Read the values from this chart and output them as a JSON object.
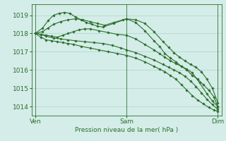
{
  "title": "Pression niveau de la mer( hPa )",
  "bg_color": "#d4ede8",
  "grid_color": "#aad4cc",
  "line_color": "#2d6e2d",
  "yticks": [
    1014,
    1015,
    1016,
    1017,
    1018,
    1019
  ],
  "ylim": [
    1013.5,
    1019.6
  ],
  "xtick_labels": [
    "Ven",
    "Sam",
    "Dim"
  ],
  "xtick_positions": [
    0,
    0.5,
    1.0
  ],
  "xlim": [
    -0.02,
    1.02
  ],
  "series": [
    {
      "x": [
        0.0,
        0.04,
        0.07,
        0.1,
        0.13,
        0.16,
        0.19,
        0.22,
        0.25,
        0.28,
        0.31,
        0.34,
        0.37,
        0.43,
        0.5,
        0.55,
        0.6,
        0.65,
        0.68,
        0.71,
        0.74,
        0.77,
        0.8,
        0.83,
        0.86,
        0.89,
        0.92,
        0.95,
        0.98,
        1.0
      ],
      "y": [
        1018.0,
        1018.3,
        1018.7,
        1019.0,
        1019.1,
        1019.15,
        1019.1,
        1018.9,
        1018.75,
        1018.6,
        1018.5,
        1018.4,
        1018.35,
        1018.55,
        1018.8,
        1018.6,
        1018.15,
        1017.6,
        1017.3,
        1016.9,
        1016.65,
        1016.45,
        1016.2,
        1016.0,
        1015.7,
        1015.5,
        1015.2,
        1014.9,
        1014.5,
        1013.95
      ]
    },
    {
      "x": [
        0.0,
        0.04,
        0.07,
        0.1,
        0.14,
        0.18,
        0.22,
        0.26,
        0.3,
        0.34,
        0.38,
        0.43,
        0.48,
        0.5,
        0.55,
        0.6,
        0.65,
        0.7,
        0.73,
        0.76,
        0.79,
        0.82,
        0.85,
        0.88,
        0.91,
        0.94,
        0.97,
        1.0
      ],
      "y": [
        1018.0,
        1018.1,
        1018.3,
        1018.5,
        1018.65,
        1018.75,
        1018.8,
        1018.75,
        1018.65,
        1018.55,
        1018.45,
        1018.6,
        1018.75,
        1018.8,
        1018.75,
        1018.55,
        1018.1,
        1017.55,
        1017.25,
        1016.95,
        1016.7,
        1016.5,
        1016.3,
        1016.15,
        1015.9,
        1015.5,
        1015.0,
        1014.2
      ]
    },
    {
      "x": [
        0.0,
        0.03,
        0.06,
        0.09,
        0.12,
        0.15,
        0.18,
        0.21,
        0.24,
        0.27,
        0.3,
        0.35,
        0.4,
        0.45,
        0.5,
        0.55,
        0.6,
        0.65,
        0.68,
        0.71,
        0.74,
        0.77,
        0.8,
        0.83,
        0.86,
        0.9,
        0.94,
        0.97,
        1.0
      ],
      "y": [
        1018.0,
        1017.95,
        1017.9,
        1017.85,
        1017.8,
        1017.9,
        1018.0,
        1018.1,
        1018.2,
        1018.25,
        1018.25,
        1018.15,
        1018.05,
        1017.95,
        1017.9,
        1017.7,
        1017.4,
        1017.1,
        1016.9,
        1016.7,
        1016.5,
        1016.35,
        1016.2,
        1016.05,
        1015.85,
        1015.3,
        1014.7,
        1014.3,
        1014.0
      ]
    },
    {
      "x": [
        0.0,
        0.03,
        0.06,
        0.1,
        0.14,
        0.18,
        0.22,
        0.27,
        0.32,
        0.37,
        0.42,
        0.47,
        0.5,
        0.55,
        0.6,
        0.65,
        0.7,
        0.73,
        0.76,
        0.79,
        0.82,
        0.85,
        0.88,
        0.91,
        0.94,
        0.97,
        1.0
      ],
      "y": [
        1018.0,
        1017.95,
        1017.85,
        1017.75,
        1017.7,
        1017.65,
        1017.6,
        1017.55,
        1017.5,
        1017.45,
        1017.35,
        1017.2,
        1017.1,
        1016.95,
        1016.75,
        1016.55,
        1016.3,
        1016.15,
        1016.0,
        1015.85,
        1015.65,
        1015.4,
        1015.1,
        1014.75,
        1014.4,
        1014.1,
        1013.85
      ]
    },
    {
      "x": [
        0.0,
        0.03,
        0.06,
        0.09,
        0.12,
        0.15,
        0.18,
        0.21,
        0.25,
        0.3,
        0.35,
        0.4,
        0.45,
        0.5,
        0.55,
        0.6,
        0.65,
        0.68,
        0.71,
        0.74,
        0.77,
        0.8,
        0.83,
        0.86,
        0.89,
        0.92,
        0.95,
        0.98,
        1.0
      ],
      "y": [
        1018.0,
        1017.8,
        1017.65,
        1017.6,
        1017.55,
        1017.5,
        1017.45,
        1017.4,
        1017.3,
        1017.2,
        1017.1,
        1017.0,
        1016.9,
        1016.8,
        1016.65,
        1016.45,
        1016.2,
        1016.05,
        1015.9,
        1015.7,
        1015.5,
        1015.2,
        1014.9,
        1014.6,
        1014.35,
        1014.15,
        1013.95,
        1013.8,
        1013.75
      ]
    }
  ]
}
